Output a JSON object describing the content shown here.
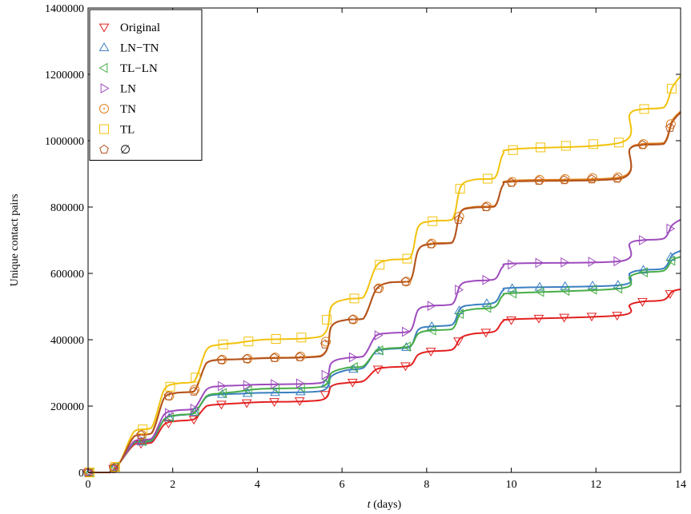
{
  "chart_data": {
    "type": "line",
    "xlabel": "t (days)",
    "xlabel_italic": "t",
    "xlabel_rest": " (days)",
    "ylabel": "Unique contact pairs",
    "xlim": [
      0,
      14
    ],
    "ylim": [
      0,
      1400000
    ],
    "xticks": [
      0,
      2,
      4,
      6,
      8,
      10,
      12,
      14
    ],
    "yticks": [
      0,
      200000,
      400000,
      600000,
      800000,
      1000000,
      1200000,
      1400000
    ],
    "grid": false,
    "legend_position": "top-left",
    "x": [
      0,
      0.5,
      0.75,
      1.1,
      1.5,
      1.8,
      2.1,
      2.5,
      2.8,
      3.1,
      3.5,
      4.1,
      5.5,
      5.75,
      6.1,
      6.5,
      6.8,
      7.1,
      7.6,
      7.8,
      8.1,
      8.6,
      8.8,
      9.1,
      9.6,
      9.8,
      10.1,
      12.6,
      12.8,
      13.1,
      13.6,
      13.8,
      14.0
    ],
    "series": [
      {
        "name": "Original",
        "color": "#e32020",
        "marker": "triangle-down",
        "values": [
          0,
          0,
          30000,
          85000,
          90000,
          145000,
          155000,
          160000,
          200000,
          205000,
          208000,
          212000,
          218000,
          260000,
          270000,
          275000,
          310000,
          317000,
          322000,
          355000,
          365000,
          370000,
          405000,
          418000,
          425000,
          455000,
          462000,
          474000,
          505000,
          515000,
          520000,
          545000,
          552000
        ]
      },
      {
        "name": "LN−TN",
        "color": "#3a7fc0",
        "marker": "triangle-up",
        "values": [
          0,
          0,
          30000,
          90000,
          95000,
          160000,
          172000,
          178000,
          228000,
          235000,
          237000,
          240000,
          245000,
          290000,
          308000,
          315000,
          365000,
          372000,
          378000,
          430000,
          440000,
          445000,
          495000,
          505000,
          512000,
          548000,
          557000,
          565000,
          600000,
          610000,
          615000,
          655000,
          668000
        ]
      },
      {
        "name": "TL−LN",
        "color": "#46ad46",
        "marker": "triangle-left",
        "values": [
          0,
          0,
          30000,
          92000,
          97000,
          160000,
          173000,
          178000,
          230000,
          238000,
          243000,
          252000,
          258000,
          300000,
          315000,
          320000,
          365000,
          374000,
          380000,
          418000,
          428000,
          432000,
          480000,
          492000,
          498000,
          533000,
          541000,
          555000,
          590000,
          603000,
          608000,
          640000,
          650000
        ]
      },
      {
        "name": "LN",
        "color": "#9e4bbd",
        "marker": "triangle-right",
        "values": [
          0,
          0,
          30000,
          95000,
          102000,
          175000,
          187000,
          192000,
          250000,
          260000,
          262000,
          265000,
          270000,
          330000,
          345000,
          350000,
          412000,
          420000,
          425000,
          490000,
          502000,
          507000,
          565000,
          577000,
          582000,
          620000,
          630000,
          637000,
          690000,
          700000,
          705000,
          745000,
          762000
        ]
      },
      {
        "name": "TN",
        "color": "#e07f1a",
        "marker": "circle-dot",
        "values": [
          0,
          0,
          30000,
          110000,
          118000,
          225000,
          240000,
          244000,
          330000,
          340000,
          341000,
          345000,
          352000,
          440000,
          460000,
          463000,
          550000,
          572000,
          576000,
          670000,
          690000,
          693000,
          785000,
          800000,
          803000,
          865000,
          880000,
          890000,
          975000,
          990000,
          993000,
          1060000,
          1088000
        ]
      },
      {
        "name": "TL",
        "color": "#f2c20d",
        "marker": "square",
        "values": [
          0,
          0,
          30000,
          125000,
          135000,
          250000,
          268000,
          273000,
          370000,
          385000,
          390000,
          400000,
          410000,
          500000,
          522000,
          527000,
          620000,
          640000,
          645000,
          740000,
          757000,
          762000,
          860000,
          882000,
          887000,
          958000,
          975000,
          995000,
          1080000,
          1095000,
          1100000,
          1160000,
          1195000
        ]
      },
      {
        "name": "∅",
        "color": "#b2531f",
        "marker": "pentagon",
        "values": [
          0,
          0,
          30000,
          110000,
          118000,
          225000,
          240000,
          244000,
          330000,
          339000,
          341000,
          344000,
          350000,
          440000,
          460000,
          463000,
          550000,
          572000,
          576000,
          670000,
          688000,
          692000,
          785000,
          798000,
          801000,
          865000,
          877000,
          886000,
          975000,
          987000,
          990000,
          1055000,
          1085000
        ]
      }
    ]
  }
}
